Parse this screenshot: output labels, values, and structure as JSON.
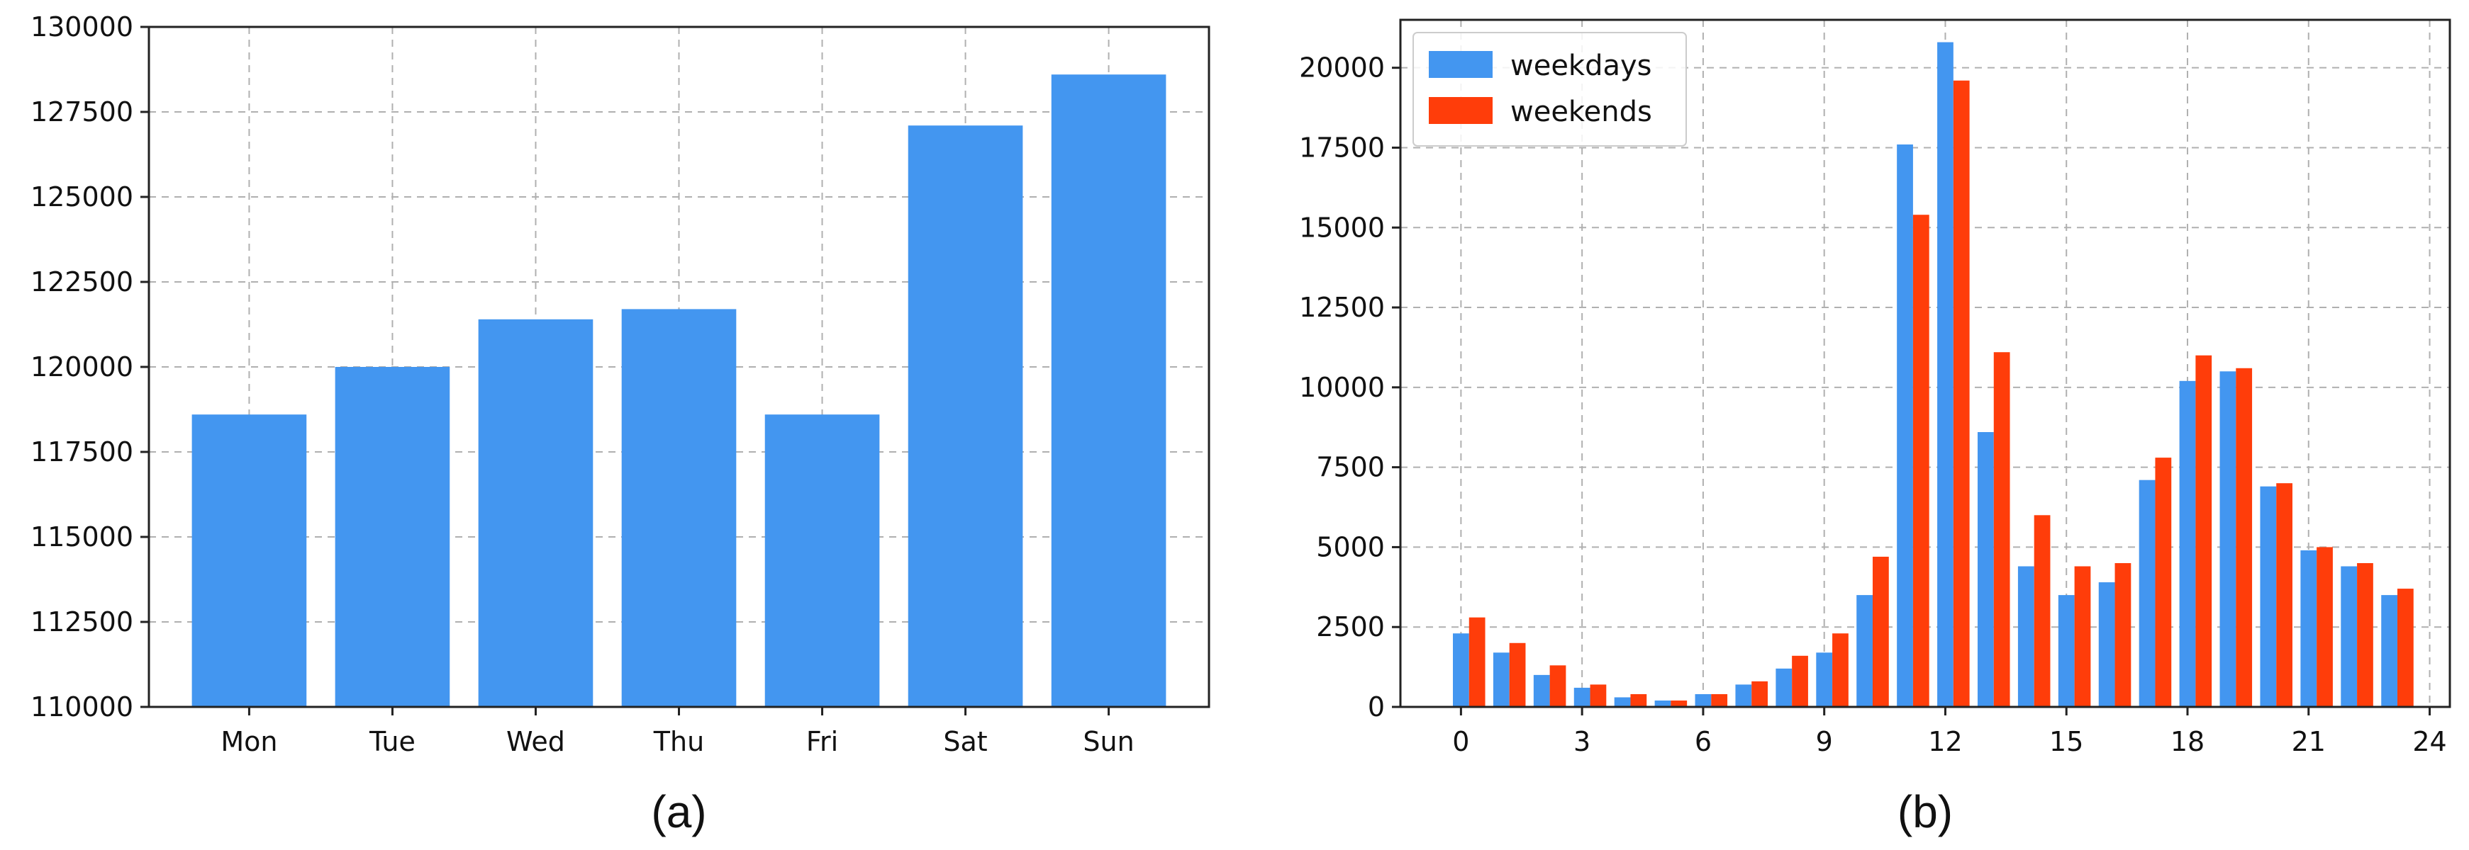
{
  "chart_data": [
    {
      "type": "bar",
      "caption": "(a)",
      "categories": [
        "Mon",
        "Tue",
        "Wed",
        "Thu",
        "Fri",
        "Sat",
        "Sun"
      ],
      "values": [
        118600,
        120000,
        121400,
        121700,
        118600,
        127100,
        128600
      ],
      "ylim": [
        110000,
        130000
      ],
      "yticks": [
        110000,
        112500,
        115000,
        117500,
        120000,
        122500,
        125000,
        127500,
        130000
      ],
      "grid": true,
      "color": "#4396f0"
    },
    {
      "type": "bar",
      "caption": "(b)",
      "x": [
        0,
        1,
        2,
        3,
        4,
        5,
        6,
        7,
        8,
        9,
        10,
        11,
        12,
        13,
        14,
        15,
        16,
        17,
        18,
        19,
        20,
        21,
        22,
        23
      ],
      "series": [
        {
          "name": "weekdays",
          "color": "#4396f0",
          "values": [
            2300,
            1700,
            1000,
            600,
            300,
            200,
            400,
            700,
            1200,
            1700,
            3500,
            17600,
            20800,
            8600,
            4400,
            3500,
            3900,
            7100,
            10200,
            10500,
            6900,
            4900,
            4400,
            3500
          ]
        },
        {
          "name": "weekends",
          "color": "#ff3d0a",
          "values": [
            2800,
            2000,
            1300,
            700,
            400,
            200,
            400,
            800,
            1600,
            2300,
            4700,
            15400,
            19600,
            11100,
            6000,
            4400,
            4500,
            7800,
            11000,
            10600,
            7000,
            5000,
            4500,
            3700
          ]
        }
      ],
      "xlim": [
        -1.5,
        24.5
      ],
      "xticks": [
        0,
        3,
        6,
        9,
        12,
        15,
        18,
        21,
        24
      ],
      "ylim": [
        0,
        21500
      ],
      "yticks": [
        0,
        2500,
        5000,
        7500,
        10000,
        12500,
        15000,
        17500,
        20000
      ],
      "grid": true,
      "legend": "top-left"
    }
  ]
}
